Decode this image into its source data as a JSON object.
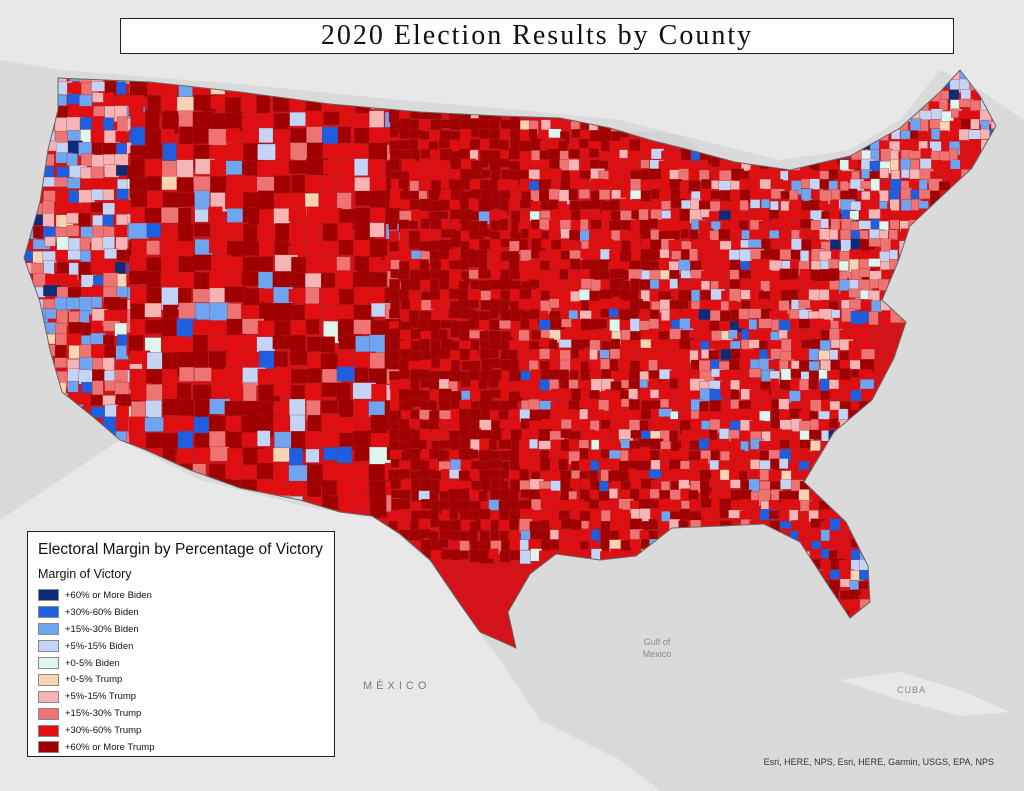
{
  "map": {
    "title": "2020 Election Results by County",
    "places": {
      "mexico": "MÉXICO",
      "gulf_line1": "Gulf of",
      "gulf_line2": "Mexico",
      "cuba": "CUBA"
    },
    "attribution": "Esri, HERE, NPS, Esri, HERE, Garmin, USGS, EPA, NPS",
    "colors": {
      "land": "#e6e6e6",
      "water": "#d6d6d6",
      "dominant": "#d4121a"
    }
  },
  "legend": {
    "title": "Electoral Margin by Percentage of Victory",
    "subtitle": "Margin of Victory",
    "items": [
      {
        "label": "+60% or More Biden",
        "color": "#0b2c7a"
      },
      {
        "label": "+30%-60% Biden",
        "color": "#1d5fe0"
      },
      {
        "label": "+15%-30% Biden",
        "color": "#6ea4f0"
      },
      {
        "label": "+5%-15% Biden",
        "color": "#c4d4f7"
      },
      {
        "label": "+0-5% Biden",
        "color": "#dff6ef"
      },
      {
        "label": "+0-5% Trump",
        "color": "#fad2b4"
      },
      {
        "label": "+5%-15% Trump",
        "color": "#f7b4b4"
      },
      {
        "label": "+15%-30% Trump",
        "color": "#ee7474"
      },
      {
        "label": "+30%-60% Trump",
        "color": "#e00e10"
      },
      {
        "label": "+60% or More Trump",
        "color": "#a10000"
      }
    ]
  }
}
